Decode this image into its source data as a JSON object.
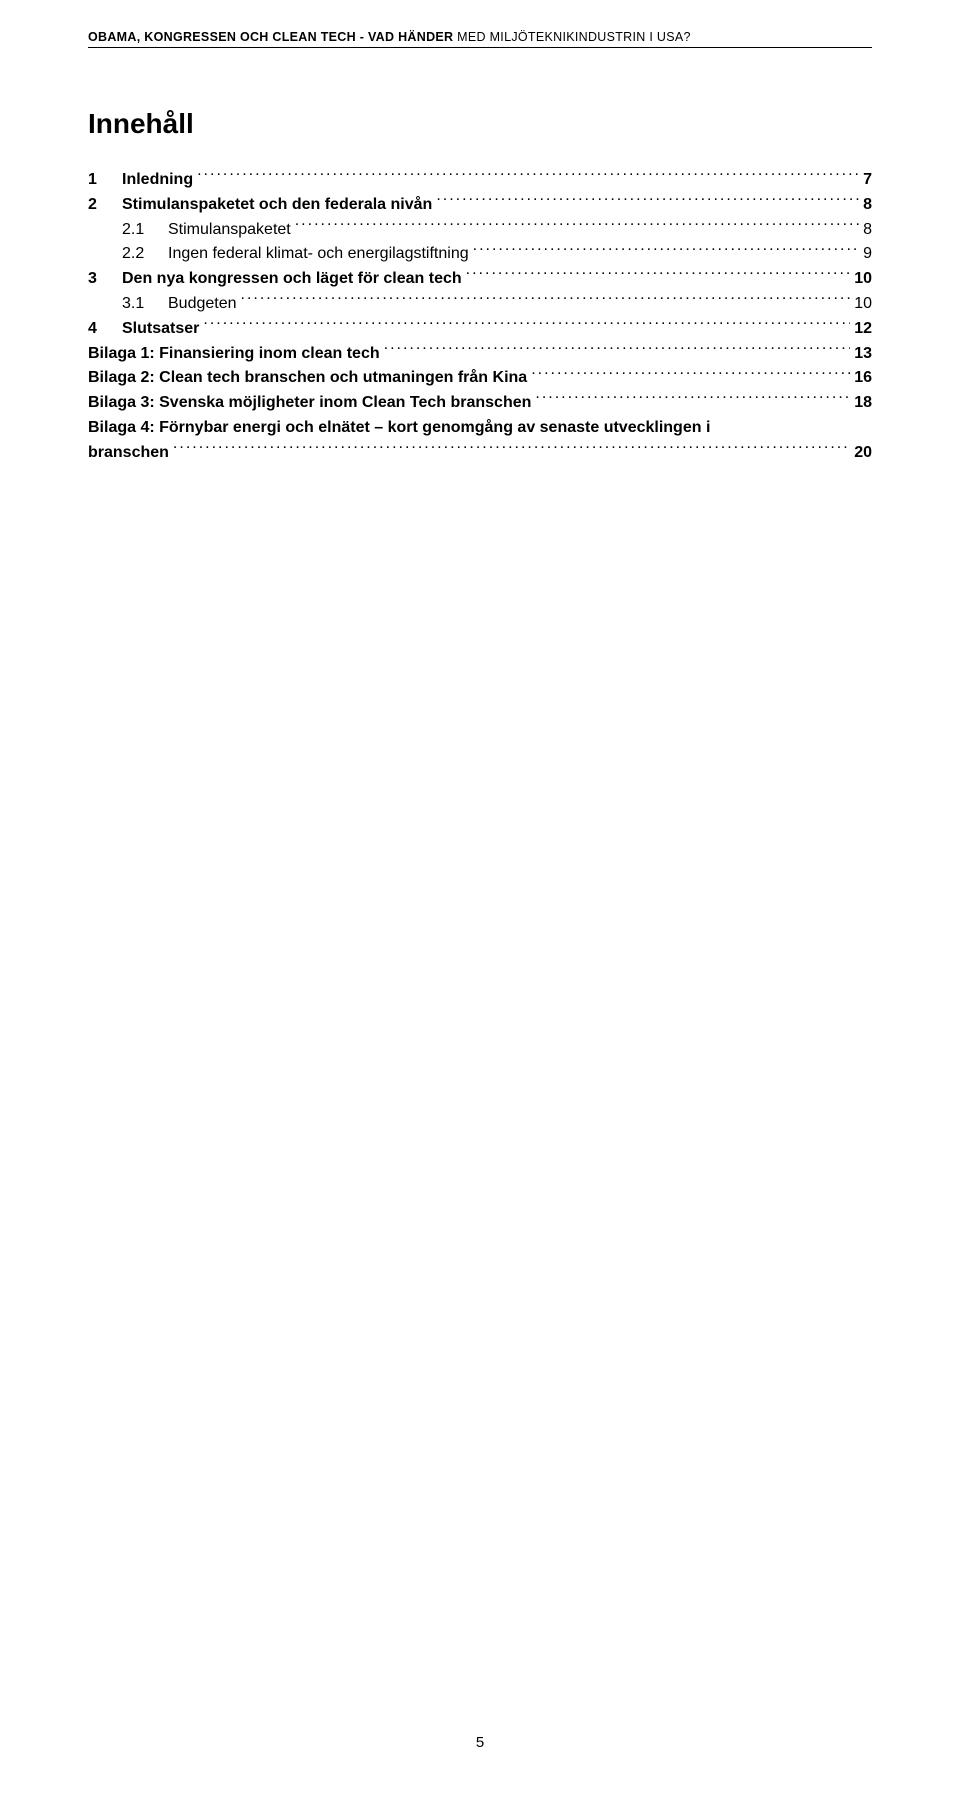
{
  "header": {
    "bold": "OBAMA, KONGRESSEN OCH CLEAN TECH - VAD HÄNDER",
    "light": " MED MILJÖTEKNIKINDUSTRIN I USA?"
  },
  "title": "Innehåll",
  "toc": [
    {
      "level": 0,
      "num": "1",
      "label": "Inledning",
      "page": "7",
      "bold": true
    },
    {
      "level": 0,
      "num": "2",
      "label": "Stimulanspaketet och den federala nivån",
      "page": "8",
      "bold": true
    },
    {
      "level": 1,
      "num": "2.1",
      "label": "Stimulanspaketet",
      "page": "8",
      "bold": false
    },
    {
      "level": 1,
      "num": "2.2",
      "label": "Ingen federal klimat- och energilagstiftning",
      "page": "9",
      "bold": false
    },
    {
      "level": 0,
      "num": "3",
      "label": "Den nya kongressen och läget för clean tech",
      "page": "10",
      "bold": true
    },
    {
      "level": 1,
      "num": "3.1",
      "label": "Budgeten",
      "page": "10",
      "bold": false
    },
    {
      "level": 0,
      "num": "4",
      "label": "Slutsatser",
      "page": "12",
      "bold": true
    },
    {
      "level": 0,
      "num": "",
      "label": "Bilaga 1: Finansiering inom clean tech",
      "page": "13",
      "bold": true
    },
    {
      "level": 0,
      "num": "",
      "label": "Bilaga 2: Clean tech branschen och utmaningen från Kina",
      "page": "16",
      "bold": true
    },
    {
      "level": 0,
      "num": "",
      "label": "Bilaga 3: Svenska möjligheter inom Clean Tech branschen",
      "page": "18",
      "bold": true
    },
    {
      "level": 0,
      "num": "",
      "label": "Bilaga 4: Förnybar energi och elnätet – kort genomgång av senaste utvecklingen i branschen",
      "page": "20",
      "bold": true,
      "wrap": true
    }
  ],
  "pageNumber": "5"
}
